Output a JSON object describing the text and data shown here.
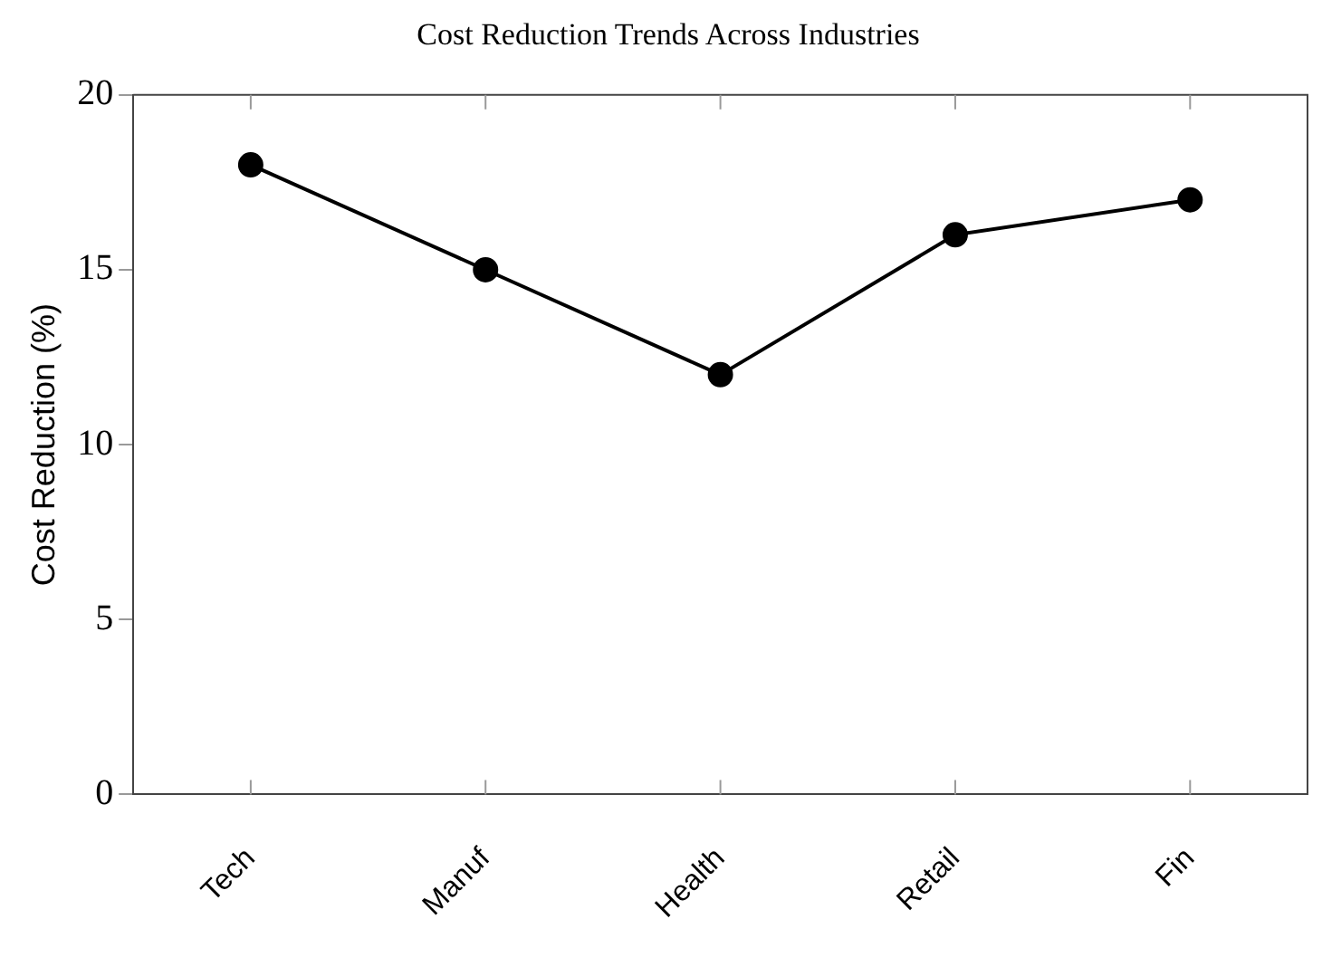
{
  "chart_data": {
    "type": "line",
    "title": "Cost Reduction Trends Across Industries",
    "ylabel": "Cost Reduction (%)",
    "categories": [
      "Tech",
      "Manuf",
      "Health",
      "Retail",
      "Fin"
    ],
    "series": [
      {
        "color": "#000000",
        "values": [
          18,
          15,
          12,
          16,
          17
        ]
      }
    ],
    "ylim": [
      0,
      20
    ],
    "yticks": [
      0,
      5,
      10,
      15,
      20
    ],
    "grid": false,
    "legend": false,
    "marker": "circle",
    "line_style": "solid"
  }
}
